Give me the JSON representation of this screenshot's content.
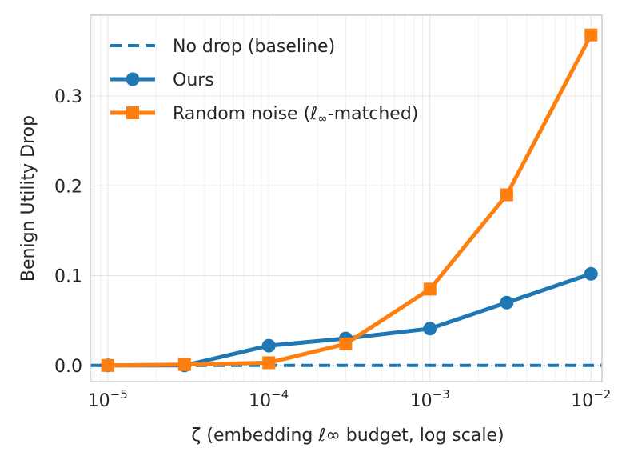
{
  "chart_data": {
    "type": "line",
    "xscale": "log",
    "xlabel": "ζ (embedding ℓ∞ budget, log scale)",
    "ylabel": "Benign Utility Drop",
    "xlim": [
      7.8e-06,
      0.0117
    ],
    "ylim": [
      -0.018,
      0.39
    ],
    "xticks": [
      {
        "value": 1e-05,
        "base": "10",
        "exp": "−5"
      },
      {
        "value": 0.0001,
        "base": "10",
        "exp": "−4"
      },
      {
        "value": 0.001,
        "base": "10",
        "exp": "−3"
      },
      {
        "value": 0.01,
        "base": "10",
        "exp": "−2"
      }
    ],
    "yticks": [
      {
        "value": 0.0,
        "label": "0.0"
      },
      {
        "value": 0.1,
        "label": "0.1"
      },
      {
        "value": 0.2,
        "label": "0.2"
      },
      {
        "value": 0.3,
        "label": "0.3"
      }
    ],
    "x": [
      1e-05,
      3e-05,
      0.0001,
      0.0003,
      0.001,
      0.003,
      0.01
    ],
    "series": [
      {
        "name": "Ours",
        "color": "#1f77b4",
        "marker": "circle",
        "values": [
          0.0,
          0.0,
          0.022,
          0.03,
          0.041,
          0.07,
          0.102
        ]
      },
      {
        "name": "Random noise (ℓ∞-matched)",
        "color": "#ff7f0e",
        "marker": "square",
        "values": [
          0.0,
          0.001,
          0.003,
          0.024,
          0.085,
          0.19,
          0.368
        ]
      }
    ],
    "baseline": {
      "name": "No drop (baseline)",
      "value": 0.0,
      "color": "#1f77b4",
      "style": "dashed"
    },
    "legend": {
      "placement": "top-left",
      "entries": [
        {
          "label": "No drop (baseline)",
          "kind": "dashed",
          "color": "#1f77b4"
        },
        {
          "label": "Ours",
          "kind": "circle",
          "color": "#1f77b4"
        },
        {
          "label": "Random noise (",
          "label_sub": "-matched)",
          "ell": "ℓ",
          "inf": "∞",
          "kind": "square",
          "color": "#ff7f0e"
        }
      ]
    },
    "grid": true
  }
}
